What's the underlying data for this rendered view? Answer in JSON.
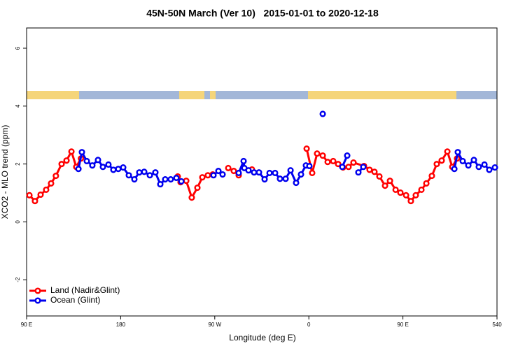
{
  "chart_data": {
    "type": "line",
    "title": "45N-50N March (Ver 10)   2015-01-01 to 2020-12-18",
    "x_label": "Longitude (deg E)",
    "y_label": "XCO2 - MLO trend (ppm)",
    "xlim": [
      90,
      540
    ],
    "ylim": [
      -3.25,
      6.7
    ],
    "xticks": [
      {
        "value": 90,
        "label": "90 E"
      },
      180,
      {
        "value": 270,
        "label": "90 W"
      },
      {
        "value": 360,
        "label": "0"
      },
      {
        "value": 450,
        "label": "90 E"
      },
      540
    ],
    "yticks": [
      -2,
      0,
      2,
      4,
      6
    ],
    "legend": "bottom-left",
    "series": [
      {
        "name": "Land (Nadir&Glint)",
        "color": "#ff0000",
        "x": [
          92.7,
          98,
          103.4,
          108.7,
          113.4,
          118,
          123.5,
          128.2,
          132.9,
          137.5,
          142,
          null,
          234.6,
          237.3,
          242.7,
          248,
          253.4,
          258.1,
          263.4,
          268.1,
          null,
          282.9,
          288.2,
          292.9,
          null,
          305.6,
          null,
          357.9,
          363.2,
          367.9,
          373.3,
          378,
          383.3,
          388,
          392.7,
          398,
          402.7,
          412.8,
          418.1,
          422.8,
          427.5,
          432.9,
          437.6,
          443,
          447.6,
          453,
          457.6,
          462.3,
          467.7,
          472.4,
          477.7,
          482.4,
          487.1,
          492.5,
          497.2,
          501.8
        ],
        "values": [
          0.92,
          0.72,
          0.94,
          1.11,
          1.33,
          1.59,
          2.0,
          2.12,
          2.43,
          1.9,
          2.19,
          null,
          1.57,
          1.37,
          1.42,
          0.84,
          1.18,
          1.54,
          1.61,
          1.64,
          null,
          1.86,
          1.76,
          1.61,
          null,
          1.81,
          null,
          2.53,
          1.69,
          2.36,
          2.29,
          2.07,
          2.1,
          2.0,
          1.88,
          1.9,
          2.05,
          1.93,
          1.8,
          1.73,
          1.57,
          1.25,
          1.42,
          1.11,
          1.01,
          0.92,
          0.72,
          0.92,
          1.11,
          1.33,
          1.59,
          2.0,
          2.12,
          2.43,
          1.9,
          2.19
        ]
      },
      {
        "name": "Ocean (Glint)",
        "color": "#0000ee",
        "x": [
          139.6,
          142.9,
          147.6,
          152.9,
          158.3,
          163,
          168.3,
          173,
          177.7,
          182.4,
          187.8,
          193.1,
          197.8,
          202.5,
          207.9,
          213.2,
          217.9,
          222.6,
          227.9,
          233.3,
          238,
          null,
          268.8,
          273.5,
          277.5,
          null,
          292.9,
          297.6,
          298.3,
          302.3,
          307.6,
          312.3,
          317.7,
          322.4,
          327.7,
          332.4,
          337.8,
          342.5,
          347.8,
          352.5,
          357.2,
          360.5,
          null,
          373.3,
          null,
          392,
          396.7,
          null,
          407.4,
          412.1,
          null,
          499.2,
          502.5,
          507.2,
          512.6,
          517.9,
          522.6,
          528,
          532.6,
          538
        ],
        "values": [
          1.83,
          2.41,
          2.1,
          1.95,
          2.14,
          1.9,
          1.98,
          1.8,
          1.83,
          1.88,
          1.61,
          1.47,
          1.71,
          1.73,
          1.61,
          1.71,
          1.3,
          1.47,
          1.47,
          1.52,
          1.4,
          null,
          1.61,
          1.76,
          1.64,
          null,
          1.69,
          2.1,
          1.86,
          1.78,
          1.71,
          1.71,
          1.47,
          1.69,
          1.69,
          1.49,
          1.49,
          1.78,
          1.35,
          1.64,
          1.95,
          1.93,
          null,
          3.73,
          null,
          1.9,
          2.29,
          null,
          1.71,
          1.9,
          null,
          1.83,
          2.41,
          2.1,
          1.95,
          2.14,
          1.9,
          1.98,
          1.8,
          1.88
        ]
      }
    ]
  }
}
